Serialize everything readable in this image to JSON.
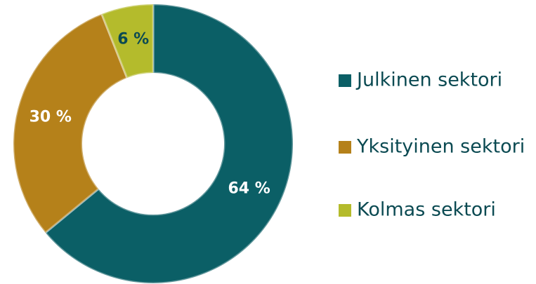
{
  "chart_data": {
    "type": "donut",
    "categories": [
      "Julkinen sektori",
      "Yksityinen sektori",
      "Kolmas sektori"
    ],
    "values": [
      64,
      30,
      6
    ],
    "value_labels": [
      "64 %",
      "30 %",
      "6 %"
    ],
    "colors": [
      "#0b5f66",
      "#b5811a",
      "#b4bb2c"
    ],
    "label_colors": [
      "#ffffff",
      "#ffffff",
      "#0b4a52"
    ],
    "legend": "right"
  }
}
